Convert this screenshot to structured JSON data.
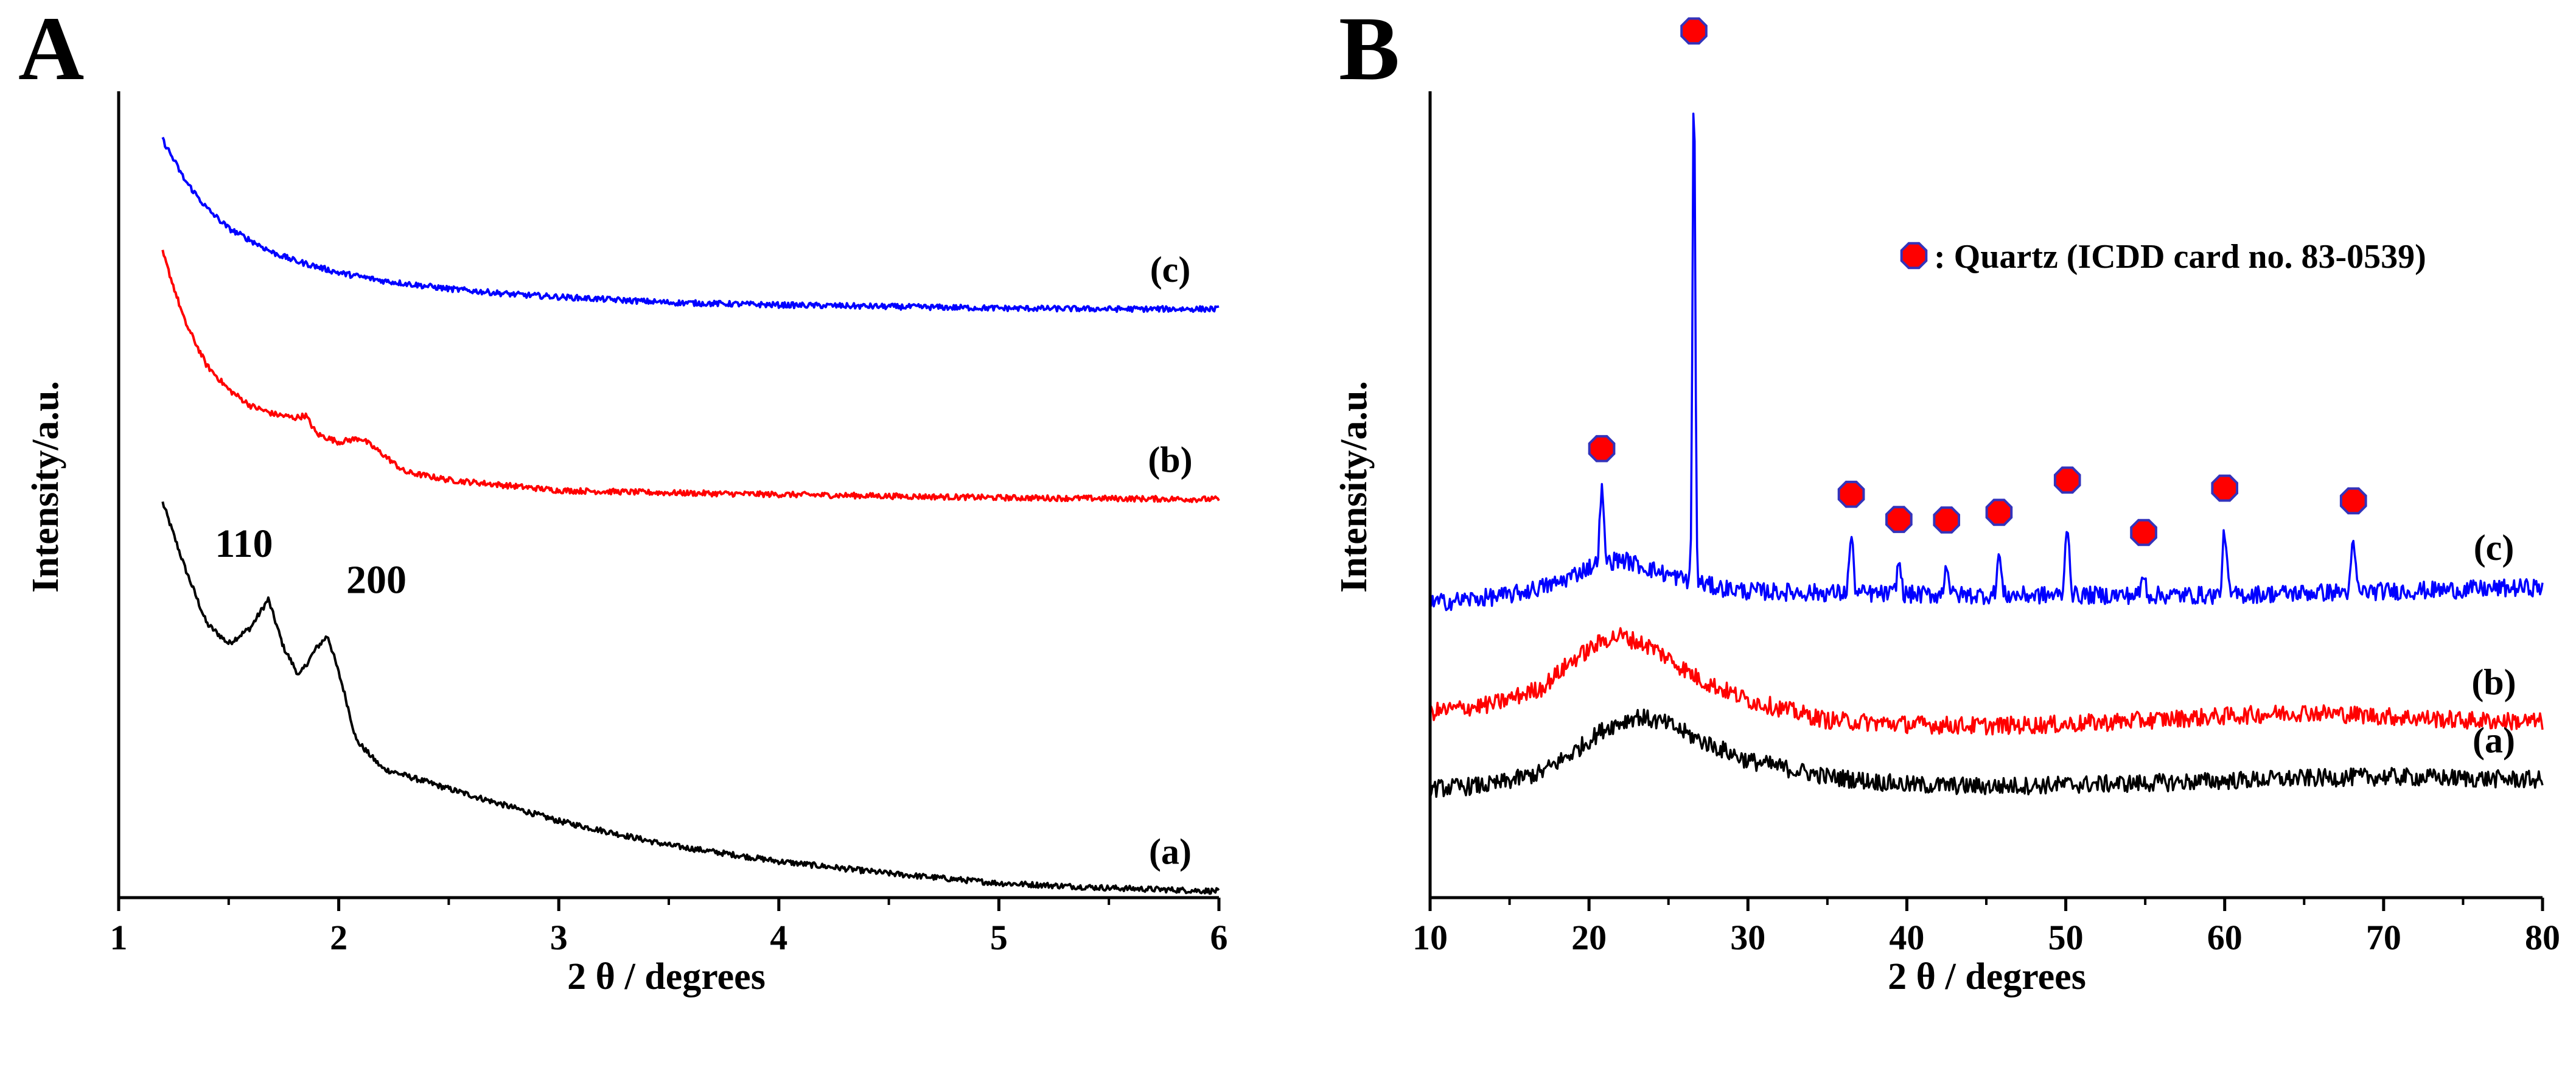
{
  "figure": {
    "panels": [
      "A",
      "B"
    ]
  },
  "chart_data": [
    {
      "panel": "A",
      "type": "line",
      "title": "",
      "xlabel": "2 θ / degrees",
      "ylabel": "Intensity/a.u.",
      "xlim": [
        1,
        6
      ],
      "xticks": [
        1,
        2,
        3,
        4,
        5,
        6
      ],
      "tick_labels": [
        "1",
        "2",
        "3",
        "4",
        "5",
        "6"
      ],
      "ylim": [
        0,
        100
      ],
      "yticks_shown": false,
      "peak_labels": [
        {
          "text": "110",
          "x": 1.68
        },
        {
          "text": "200",
          "x": 1.95
        }
      ],
      "series": [
        {
          "name": "(a)",
          "label": "(a)",
          "color": "#000000",
          "x": [
            1.2,
            1.3,
            1.4,
            1.5,
            1.6,
            1.68,
            1.75,
            1.82,
            1.9,
            1.95,
            2.02,
            2.08,
            2.2,
            2.5,
            3.0,
            3.5,
            4.0,
            4.5,
            5.0,
            5.5,
            6.0
          ],
          "y": [
            49,
            41,
            34,
            31.5,
            33.5,
            37,
            31,
            27.5,
            31,
            32.5,
            26,
            19.5,
            16,
            13.5,
            9.5,
            6.5,
            4.5,
            3,
            1.8,
            1.2,
            0.8
          ]
        },
        {
          "name": "(b)",
          "label": "(b)",
          "color": "#ff0000",
          "x": [
            1.2,
            1.3,
            1.4,
            1.5,
            1.6,
            1.7,
            1.8,
            1.85,
            1.9,
            2.0,
            2.1,
            2.2,
            2.3,
            2.5,
            3.0,
            3.5,
            4.0,
            4.5,
            5.0,
            5.5,
            6.0
          ],
          "y": [
            80,
            71.5,
            66,
            63,
            61,
            60,
            59.5,
            59.8,
            57.5,
            56.5,
            57,
            55,
            52.8,
            51.8,
            50.5,
            50.2,
            50,
            49.8,
            49.6,
            49.5,
            49.4
          ]
        },
        {
          "name": "(c)",
          "label": "(c)",
          "color": "#0000ff",
          "x": [
            1.2,
            1.3,
            1.4,
            1.5,
            1.6,
            1.7,
            1.8,
            2.0,
            2.2,
            2.5,
            2.8,
            3.0,
            3.5,
            4.0,
            4.5,
            5.0,
            5.5,
            6.0
          ],
          "y": [
            94,
            89,
            85.5,
            83,
            81.5,
            80,
            79,
            77.5,
            76.5,
            75.5,
            74.8,
            74.5,
            73.8,
            73.5,
            73.3,
            73.1,
            73,
            73
          ]
        }
      ]
    },
    {
      "panel": "B",
      "type": "line",
      "title": "",
      "xlabel": "2 θ / degrees",
      "ylabel": "Intensity/a.u.",
      "xlim": [
        10,
        80
      ],
      "xticks": [
        10,
        20,
        30,
        40,
        50,
        60,
        70,
        80
      ],
      "tick_labels": [
        "10",
        "20",
        "30",
        "40",
        "50",
        "60",
        "70",
        "80"
      ],
      "ylim": [
        0,
        100
      ],
      "yticks_shown": false,
      "legend": {
        "marker": "red-hexagon",
        "text": ": Quartz (ICDD card no. 83-0539)",
        "placement": "top-right"
      },
      "quartz_markers_x": [
        20.8,
        26.6,
        36.5,
        39.5,
        42.5,
        45.8,
        50.1,
        54.9,
        60.0,
        68.1
      ],
      "series": [
        {
          "name": "(a)",
          "label": "(a)",
          "color": "#000000",
          "x": [
            10,
            14,
            17,
            19,
            21,
            23,
            25,
            27,
            30,
            35,
            40,
            45,
            50,
            55,
            60,
            65,
            70,
            75,
            80
          ],
          "y": [
            13.5,
            14,
            15.5,
            18,
            21,
            22.5,
            21.5,
            19.5,
            17,
            15,
            14,
            13.8,
            14,
            14.2,
            14.5,
            14.8,
            15,
            14.8,
            14.6
          ]
        },
        {
          "name": "(b)",
          "label": "(b)",
          "color": "#ff0000",
          "x": [
            10,
            14,
            17,
            19,
            21,
            22,
            24,
            27,
            30,
            35,
            40,
            45,
            50,
            55,
            60,
            65,
            70,
            75,
            80
          ],
          "y": [
            23,
            24,
            26,
            29.5,
            32,
            32.5,
            31,
            27,
            24.5,
            22,
            21.5,
            21.3,
            21.5,
            22,
            22.5,
            23,
            22.5,
            22,
            21.8
          ]
        },
        {
          "name": "(c)",
          "label": "(c)",
          "color": "#0000ff",
          "x": [
            10,
            15,
            18,
            20,
            22,
            25,
            28,
            30,
            35,
            40,
            45,
            50,
            55,
            60,
            65,
            70,
            75,
            80
          ],
          "y": [
            36.5,
            37.5,
            39,
            41,
            42,
            40,
            38.5,
            38,
            37.8,
            37.6,
            37.5,
            37.5,
            37.5,
            37.5,
            37.8,
            38,
            38.2,
            38.5
          ],
          "peaks": [
            {
              "x": 20.8,
              "height": 9
            },
            {
              "x": 26.6,
              "height": 63
            },
            {
              "x": 36.5,
              "height": 7
            },
            {
              "x": 39.5,
              "height": 4
            },
            {
              "x": 42.5,
              "height": 4
            },
            {
              "x": 45.8,
              "height": 5
            },
            {
              "x": 50.1,
              "height": 9
            },
            {
              "x": 54.9,
              "height": 2.5
            },
            {
              "x": 60.0,
              "height": 8
            },
            {
              "x": 68.1,
              "height": 6
            }
          ]
        }
      ]
    }
  ]
}
